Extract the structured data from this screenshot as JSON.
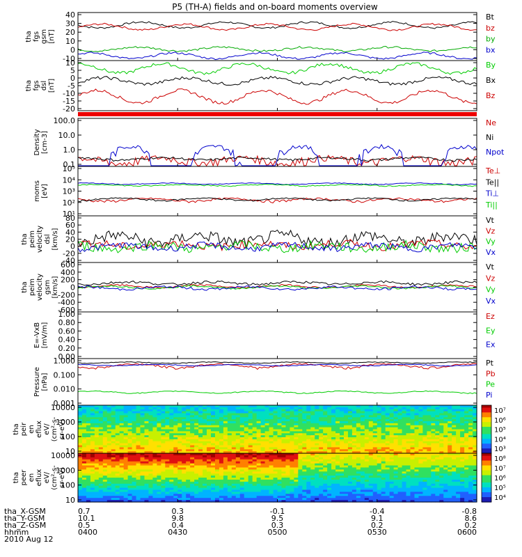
{
  "title": "P5 (TH-A) fields and on-board moments overview",
  "footer": {
    "rows": [
      {
        "label": "tha_X-GSM",
        "values": [
          "0.7",
          "0.3",
          "-0.1",
          "-0.4",
          "-0.8"
        ]
      },
      {
        "label": "tha_Y-GSM",
        "values": [
          "10.1",
          "9.8",
          "9.5",
          "9.1",
          "8.6"
        ]
      },
      {
        "label": "tha_Z-GSM",
        "values": [
          "0.5",
          "0.4",
          "0.3",
          "0.2",
          "0.2"
        ]
      },
      {
        "label": "hhmm",
        "values": [
          "0400",
          "0430",
          "0500",
          "0530",
          "0600"
        ]
      }
    ],
    "date": "2010 Aug 12"
  },
  "chart_data": [
    {
      "type": "line",
      "ylabel": [
        "tha",
        "fgs",
        "gsm",
        "[nT]"
      ],
      "ylim": [
        -10,
        40
      ],
      "yticks": [
        "40",
        "30",
        "20",
        "10",
        "0",
        "-10"
      ],
      "series": [
        {
          "name": "Bt",
          "color": "#000000",
          "level": 27,
          "amp": 3,
          "noise": 1
        },
        {
          "name": "bz",
          "color": "#cc0000",
          "level": 25,
          "amp": 3,
          "noise": 1
        },
        {
          "name": "by",
          "color": "#00aa00",
          "level": 2,
          "amp": 2,
          "noise": 1
        },
        {
          "name": "bx",
          "color": "#0000cc",
          "level": -5,
          "amp": 3,
          "noise": 1
        }
      ]
    },
    {
      "type": "line",
      "ylabel": [
        "tha",
        "fgs",
        "dsl",
        "[nT]"
      ],
      "ylim": [
        -22,
        10
      ],
      "yticks": [
        "10",
        "5",
        "0",
        "-5",
        "-10",
        "-15",
        "-20"
      ],
      "series": [
        {
          "name": "By",
          "color": "#00cc00",
          "level": 5,
          "amp": 3,
          "noise": 1
        },
        {
          "name": "Bx",
          "color": "#000000",
          "level": -3,
          "amp": 2,
          "noise": 1
        },
        {
          "name": "Bz",
          "color": "#cc0000",
          "level": -13,
          "amp": 4,
          "noise": 1
        }
      ]
    },
    {
      "type": "line",
      "ylabel": [
        "Density",
        "[cm-3]"
      ],
      "log": true,
      "ylim": [
        0.1,
        100
      ],
      "yticks": [
        "100.0",
        "10.0",
        "1.0",
        "0.1"
      ],
      "series": [
        {
          "name": "Ne",
          "color": "#cc0000",
          "level": 0.25,
          "amp": 0.1,
          "noise": 0.15
        },
        {
          "name": "Ni",
          "color": "#000000",
          "level": 0.3,
          "amp": 0.05,
          "noise": 0.05
        },
        {
          "name": "Npot",
          "color": "#0000cc",
          "level": 0.3,
          "amp": 1.5,
          "noise": 0.5
        }
      ]
    },
    {
      "type": "line",
      "ylabel": [
        "moms",
        "[eV]"
      ],
      "log": true,
      "ylim": [
        10,
        100000
      ],
      "yticks": [
        "10^5",
        "10^4",
        "10^3",
        "10^2",
        "10^1"
      ],
      "series": [
        {
          "name": "Te⊥",
          "color": "#cc0000",
          "level": 200,
          "amp": 50,
          "noise": 40
        },
        {
          "name": "Te||",
          "color": "#000000",
          "level": 220,
          "amp": 50,
          "noise": 30
        },
        {
          "name": "Ti⊥",
          "color": "#0000cc",
          "level": 4000,
          "amp": 500,
          "noise": 300
        },
        {
          "name": "Ti||",
          "color": "#00cc00",
          "level": 3000,
          "amp": 400,
          "noise": 300
        }
      ]
    },
    {
      "type": "line",
      "ylabel": [
        "tha",
        "peim",
        "velocity",
        "dsl",
        "[km/s]"
      ],
      "ylim": [
        -40,
        80
      ],
      "yticks": [
        "80",
        "60",
        "40",
        "20",
        "0",
        "-20",
        "-40"
      ],
      "series": [
        {
          "name": "Vt",
          "color": "#000000",
          "level": 20,
          "amp": 10,
          "noise": 15
        },
        {
          "name": "Vz",
          "color": "#cc0000",
          "level": 5,
          "amp": 5,
          "noise": 10
        },
        {
          "name": "Vy",
          "color": "#00cc00",
          "level": 0,
          "amp": 5,
          "noise": 12
        },
        {
          "name": "Vx",
          "color": "#0000cc",
          "level": 0,
          "amp": 5,
          "noise": 8
        }
      ]
    },
    {
      "type": "line",
      "ylabel": [
        "tha",
        "peim",
        "velocity",
        "gsm",
        "[km/s]"
      ],
      "ylim": [
        -600,
        600
      ],
      "yticks": [
        "600",
        "400",
        "200",
        "0",
        "-200",
        "-400",
        "-600"
      ],
      "series": [
        {
          "name": "Vt",
          "color": "#000000",
          "level": 100,
          "amp": 30,
          "noise": 30
        },
        {
          "name": "Vz",
          "color": "#cc0000",
          "level": 20,
          "amp": 30,
          "noise": 20
        },
        {
          "name": "Vy",
          "color": "#00cc00",
          "level": 0,
          "amp": 30,
          "noise": 20
        },
        {
          "name": "Vx",
          "color": "#0000cc",
          "level": -20,
          "amp": 30,
          "noise": 30
        }
      ]
    },
    {
      "type": "line",
      "ylabel": [
        "E=-VxB",
        "[mV/m]"
      ],
      "ylim": [
        0,
        1
      ],
      "yticks": [
        "1.00",
        "0.80",
        "0.60",
        "0.40",
        "0.20",
        "0.00"
      ],
      "series": [
        {
          "name": "Ez",
          "color": "#cc0000"
        },
        {
          "name": "Ey",
          "color": "#00cc00"
        },
        {
          "name": "Ex",
          "color": "#0000cc"
        }
      ]
    },
    {
      "type": "line",
      "ylabel": [
        "Pressure",
        "[nPa]"
      ],
      "log": true,
      "ylim": [
        0.001,
        1
      ],
      "yticks": [
        "1.000",
        "0.100",
        "0.010",
        "0.001"
      ],
      "series": [
        {
          "name": "Pt",
          "color": "#000000",
          "level": 0.55,
          "amp": 0.05,
          "noise": 0.03
        },
        {
          "name": "Pb",
          "color": "#cc0000",
          "level": 0.35,
          "amp": 0.1,
          "noise": 0.05
        },
        {
          "name": "Pe",
          "color": "#00cc00",
          "level": 0.007,
          "amp": 0.001,
          "noise": 0.0005
        },
        {
          "name": "Pi",
          "color": "#0000cc",
          "level": 0.38,
          "amp": 0.04,
          "noise": 0.02
        }
      ]
    },
    {
      "type": "heatmap",
      "ylabel": [
        "tha",
        "peir",
        "en",
        "eflux",
        "eV/",
        "(cm^2-s-",
        "sr-eV)"
      ],
      "log": true,
      "ylim": [
        10,
        20000
      ],
      "yticks": [
        "10000",
        "1000",
        "100",
        "10"
      ],
      "colorbar": [
        "10^7",
        "10^6",
        "10^5",
        "10^4",
        "10^3"
      ]
    },
    {
      "type": "heatmap",
      "ylabel": [
        "tha",
        "peer",
        "en",
        "eflux",
        "eV/",
        "(cm^2-s-",
        "sr-eV)"
      ],
      "log": true,
      "ylim": [
        10,
        20000
      ],
      "yticks": [
        "10000",
        "1000",
        "100",
        "10"
      ],
      "colorbar": [
        "10^8",
        "10^7",
        "10^6",
        "10^5",
        "10^4"
      ]
    }
  ]
}
